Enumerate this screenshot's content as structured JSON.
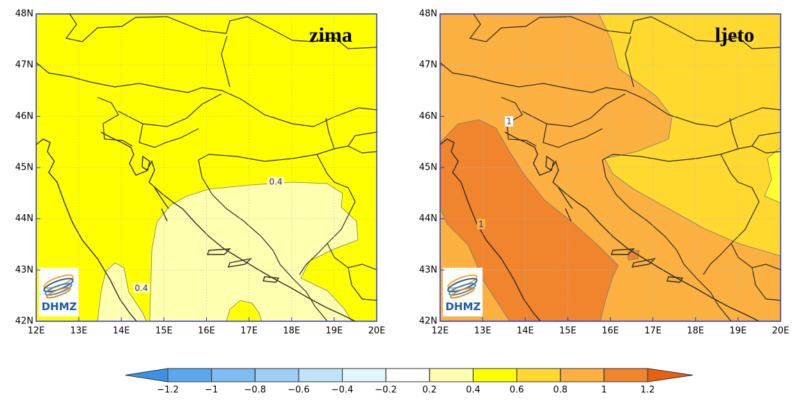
{
  "panels": [
    {
      "title": "zima",
      "contour_labels": [
        "0.4",
        "0.4"
      ],
      "logo": "DHMZ"
    },
    {
      "title": "ljeto",
      "contour_labels": [
        "1",
        "1"
      ],
      "logo": "DHMZ"
    }
  ],
  "axes": {
    "lonlim": [
      12,
      20
    ],
    "latlim": [
      42,
      48
    ],
    "lonticks": [
      {
        "value": 12,
        "label": "12E"
      },
      {
        "value": 13,
        "label": "13E"
      },
      {
        "value": 14,
        "label": "14E"
      },
      {
        "value": 15,
        "label": "15E"
      },
      {
        "value": 16,
        "label": "16E"
      },
      {
        "value": 17,
        "label": "17E"
      },
      {
        "value": 18,
        "label": "18E"
      },
      {
        "value": 19,
        "label": "19E"
      },
      {
        "value": 20,
        "label": "20E"
      }
    ],
    "latticks": [
      {
        "value": 42,
        "label": "42N"
      },
      {
        "value": 43,
        "label": "43N"
      },
      {
        "value": 44,
        "label": "44N"
      },
      {
        "value": 45,
        "label": "45N"
      },
      {
        "value": 46,
        "label": "46N"
      },
      {
        "value": 47,
        "label": "47N"
      },
      {
        "value": 48,
        "label": "48N"
      }
    ]
  },
  "colorbar": {
    "colors": [
      "#3a93e6",
      "#5aa9f0",
      "#7fbcf2",
      "#9fcff5",
      "#bfe3f8",
      "#dff7fb",
      "#ffffff",
      "#ffffb0",
      "#ffff00",
      "#ffd92e",
      "#fbb040",
      "#f0852d",
      "#e86010"
    ],
    "ticks": [
      {
        "value": -1.2,
        "label": "−1.2"
      },
      {
        "value": -1,
        "label": "−1"
      },
      {
        "value": -0.8,
        "label": "−0.8"
      },
      {
        "value": -0.6,
        "label": "−0.6"
      },
      {
        "value": -0.4,
        "label": "−0.4"
      },
      {
        "value": -0.2,
        "label": "−0.2"
      },
      {
        "value": 0.2,
        "label": "0.2"
      },
      {
        "value": 0.4,
        "label": "0.4"
      },
      {
        "value": 0.6,
        "label": "0.6"
      },
      {
        "value": 0.8,
        "label": "0.8"
      },
      {
        "value": 1,
        "label": "1"
      },
      {
        "value": 1.2,
        "label": "1.2"
      }
    ]
  }
}
